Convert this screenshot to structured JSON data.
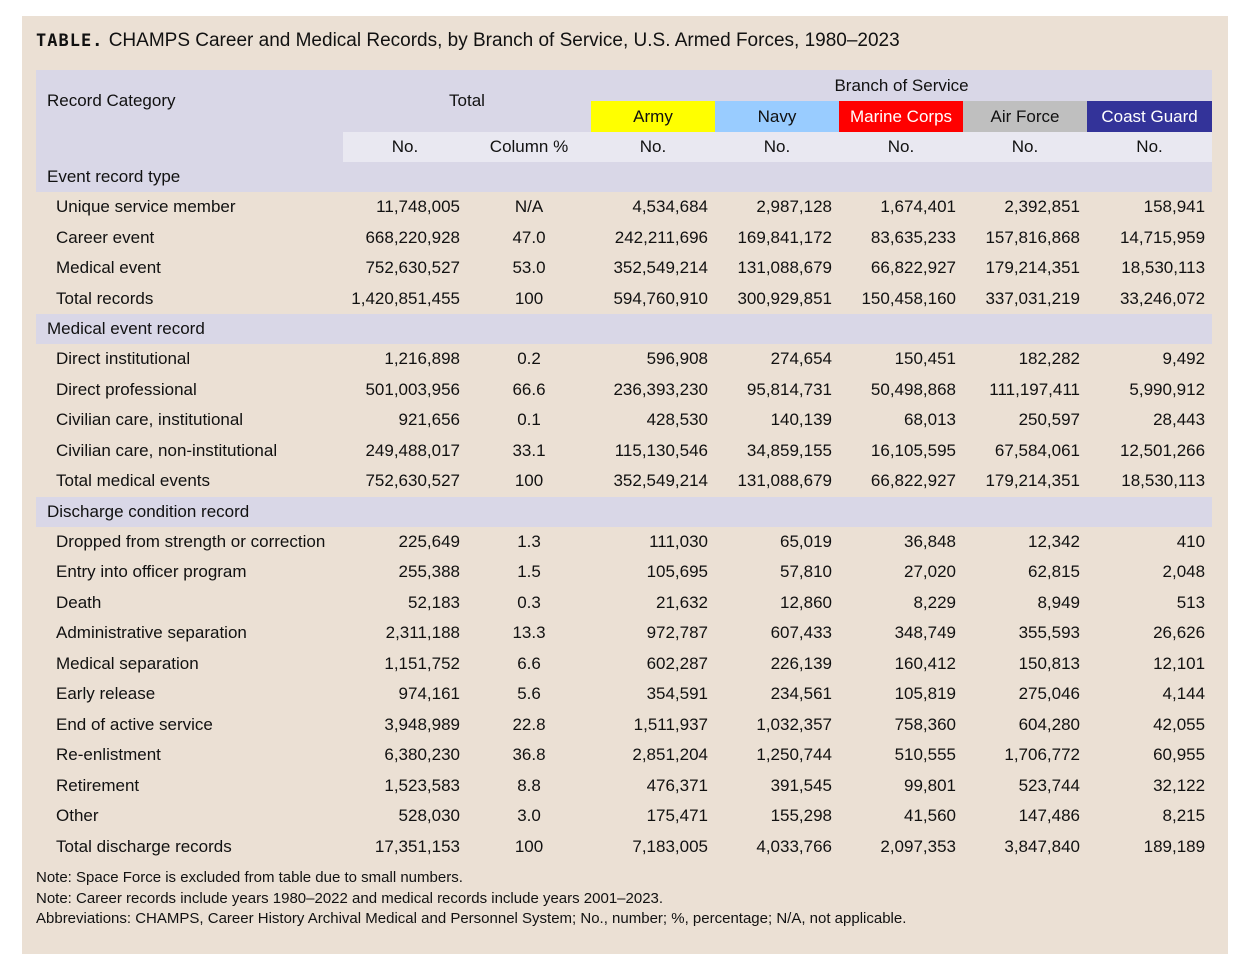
{
  "title": {
    "tag": "TABLE.",
    "text": "CHAMPS Career and Medical Records, by Branch of Service, U.S. Armed Forces, 1980–2023"
  },
  "header": {
    "record_category": "Record Category",
    "total": "Total",
    "branch_of_service": "Branch of Service",
    "branches": [
      {
        "label": "Army",
        "bg": "#ffff00",
        "fg": "#111111"
      },
      {
        "label": "Navy",
        "bg": "#99ccff",
        "fg": "#111111"
      },
      {
        "label": "Marine Corps",
        "bg": "#ff0000",
        "fg": "#ffffff"
      },
      {
        "label": "Air Force",
        "bg": "#bfbfbf",
        "fg": "#111111"
      },
      {
        "label": "Coast Guard",
        "bg": "#333399",
        "fg": "#ffffff"
      }
    ],
    "sub": [
      "No.",
      "Column %",
      "No.",
      "No.",
      "No.",
      "No.",
      "No."
    ]
  },
  "sections": [
    {
      "title": "Event record type",
      "rows": [
        [
          "Unique service member",
          "11,748,005",
          "N/A",
          "4,534,684",
          "2,987,128",
          "1,674,401",
          "2,392,851",
          "158,941"
        ],
        [
          "Career event",
          "668,220,928",
          "47.0",
          "242,211,696",
          "169,841,172",
          "83,635,233",
          "157,816,868",
          "14,715,959"
        ],
        [
          "Medical event",
          "752,630,527",
          "53.0",
          "352,549,214",
          "131,088,679",
          "66,822,927",
          "179,214,351",
          "18,530,113"
        ],
        [
          "Total records",
          "1,420,851,455",
          "100",
          "594,760,910",
          "300,929,851",
          "150,458,160",
          "337,031,219",
          "33,246,072"
        ]
      ]
    },
    {
      "title": "Medical event record",
      "rows": [
        [
          "Direct institutional",
          "1,216,898",
          "0.2",
          "596,908",
          "274,654",
          "150,451",
          "182,282",
          "9,492"
        ],
        [
          "Direct professional",
          "501,003,956",
          "66.6",
          "236,393,230",
          "95,814,731",
          "50,498,868",
          "111,197,411",
          "5,990,912"
        ],
        [
          "Civilian care, institutional",
          "921,656",
          "0.1",
          "428,530",
          "140,139",
          "68,013",
          "250,597",
          "28,443"
        ],
        [
          "Civilian care, non-institutional",
          "249,488,017",
          "33.1",
          "115,130,546",
          "34,859,155",
          "16,105,595",
          "67,584,061",
          "12,501,266"
        ],
        [
          "Total medical events",
          "752,630,527",
          "100",
          "352,549,214",
          "131,088,679",
          "66,822,927",
          "179,214,351",
          "18,530,113"
        ]
      ]
    },
    {
      "title": "Discharge condition record",
      "rows": [
        [
          "Dropped from strength or correction",
          "225,649",
          "1.3",
          "111,030",
          "65,019",
          "36,848",
          "12,342",
          "410"
        ],
        [
          "Entry into officer program",
          "255,388",
          "1.5",
          "105,695",
          "57,810",
          "27,020",
          "62,815",
          "2,048"
        ],
        [
          "Death",
          "52,183",
          "0.3",
          "21,632",
          "12,860",
          "8,229",
          "8,949",
          "513"
        ],
        [
          "Administrative separation",
          "2,311,188",
          "13.3",
          "972,787",
          "607,433",
          "348,749",
          "355,593",
          "26,626"
        ],
        [
          "Medical separation",
          "1,151,752",
          "6.6",
          "602,287",
          "226,139",
          "160,412",
          "150,813",
          "12,101"
        ],
        [
          "Early release",
          "974,161",
          "5.6",
          "354,591",
          "234,561",
          "105,819",
          "275,046",
          "4,144"
        ],
        [
          "End of active service",
          "3,948,989",
          "22.8",
          "1,511,937",
          "1,032,357",
          "758,360",
          "604,280",
          "42,055"
        ],
        [
          "Re-enlistment",
          "6,380,230",
          "36.8",
          "2,851,204",
          "1,250,744",
          "510,555",
          "1,706,772",
          "60,955"
        ],
        [
          "Retirement",
          "1,523,583",
          "8.8",
          "476,371",
          "391,545",
          "99,801",
          "523,744",
          "32,122"
        ],
        [
          "Other",
          "528,030",
          "3.0",
          "175,471",
          "155,298",
          "41,560",
          "147,486",
          "8,215"
        ],
        [
          "Total discharge records",
          "17,351,153",
          "100",
          "7,183,005",
          "4,033,766",
          "2,097,353",
          "3,847,840",
          "189,189"
        ]
      ]
    }
  ],
  "notes": [
    "Note: Space Force is excluded from table due to small numbers.",
    "Note: Career records include years 1980–2022 and medical records include years 2001–2023.",
    "Abbreviations: CHAMPS, Career History Archival Medical and Personnel System; No., number; %, percentage; N/A, not applicable."
  ]
}
